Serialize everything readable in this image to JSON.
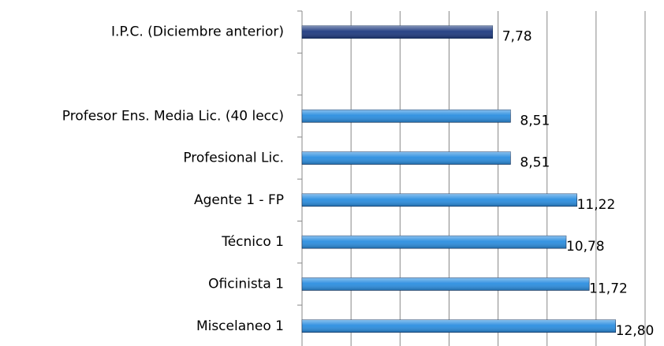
{
  "chart_data": {
    "type": "bar",
    "orientation": "horizontal",
    "categories": [
      "I.P.C. (Diciembre anterior)",
      null,
      "Profesor Ens. Media Lic. (40 lecc)",
      "Profesional Lic.",
      "Agente 1 - FP",
      "Técnico 1",
      "Oficinista 1",
      "Miscelaneo 1"
    ],
    "values": [
      7.78,
      null,
      8.51,
      8.51,
      11.22,
      10.78,
      11.72,
      12.8
    ],
    "value_labels": [
      "7,78",
      null,
      "8,51",
      "8,51",
      "11,22",
      "10,78",
      "11,72",
      "12,80"
    ],
    "colors": [
      "#1f3b80",
      null,
      "#2b8ee0",
      "#2b8ee0",
      "#2b8ee0",
      "#2b8ee0",
      "#2b8ee0",
      "#2b8ee0"
    ],
    "xlim": [
      0,
      14
    ],
    "xticks": [
      0,
      2,
      4,
      6,
      8,
      10,
      12,
      14
    ],
    "grid": true
  }
}
